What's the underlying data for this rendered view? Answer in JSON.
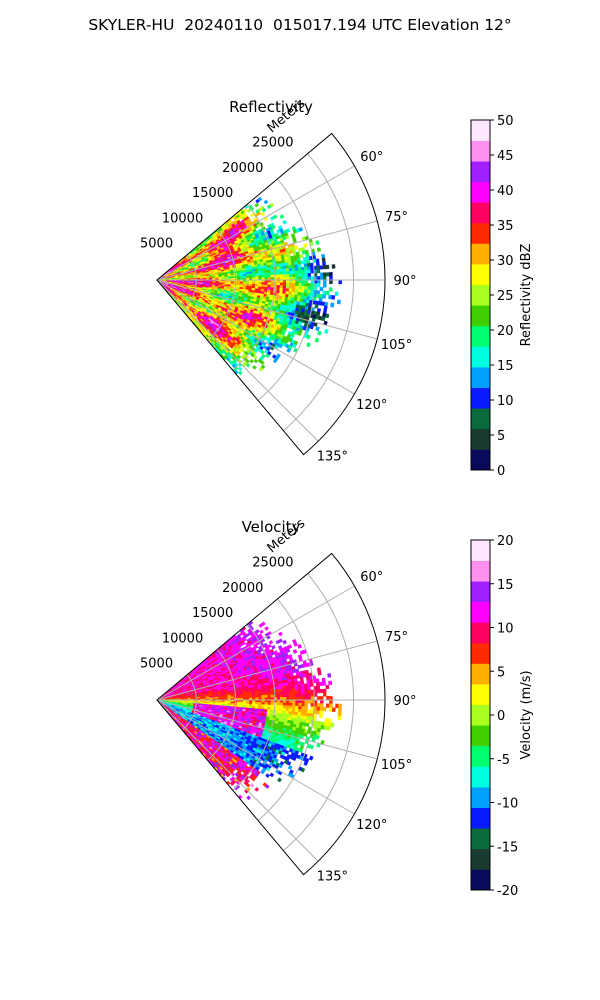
{
  "title": "SKYLER-HU  20240110  015017.194 UTC Elevation 12°",
  "chart_data": [
    {
      "type": "heatmap",
      "title": "Reflectivity",
      "radial_label": "Meters",
      "radial_ticks": [
        5000,
        10000,
        15000,
        20000,
        25000
      ],
      "r_max": 29000,
      "data_r_max": 23500,
      "angle_ticks": [
        "60°",
        "75°",
        "90°",
        "105°",
        "120°",
        "135°"
      ],
      "angle_values": [
        60,
        75,
        90,
        105,
        120,
        135
      ],
      "sector_deg": [
        50,
        140
      ],
      "colorbar": {
        "label": "Reflectivity dBZ",
        "range": [
          0,
          50
        ],
        "ticks": [
          0,
          5,
          10,
          15,
          20,
          25,
          30,
          35,
          40,
          45,
          50
        ],
        "stops": [
          "#0a0a5a",
          "#1a3a30",
          "#0b6a3c",
          "#0a1aff",
          "#00a0ff",
          "#00ffe0",
          "#00ff70",
          "#40d000",
          "#a8ff20",
          "#ffff00",
          "#ffb000",
          "#ff2a00",
          "#ff0060",
          "#ff00ff",
          "#a020ff",
          "#ff90f0",
          "#ffe8ff"
        ]
      }
    },
    {
      "type": "heatmap",
      "title": "Velocity",
      "radial_label": "Meters",
      "radial_ticks": [
        5000,
        10000,
        15000,
        20000,
        25000
      ],
      "r_max": 29000,
      "data_r_max": 23500,
      "angle_ticks": [
        "60°",
        "75°",
        "90°",
        "105°",
        "120°",
        "135°"
      ],
      "angle_values": [
        60,
        75,
        90,
        105,
        120,
        135
      ],
      "sector_deg": [
        50,
        140
      ],
      "colorbar": {
        "label": "Velocity (m/s)",
        "range": [
          -20,
          20
        ],
        "ticks": [
          -20,
          -15,
          -10,
          -5,
          0,
          5,
          10,
          15,
          20
        ],
        "stops": [
          "#0a0a5a",
          "#1a3a30",
          "#0b6a3c",
          "#0a1aff",
          "#00a0ff",
          "#00ffe0",
          "#00ff70",
          "#40d000",
          "#a8ff20",
          "#ffff00",
          "#ffb000",
          "#ff2a00",
          "#ff0060",
          "#ff00ff",
          "#a020ff",
          "#ff90f0",
          "#ffe8ff"
        ]
      }
    }
  ]
}
